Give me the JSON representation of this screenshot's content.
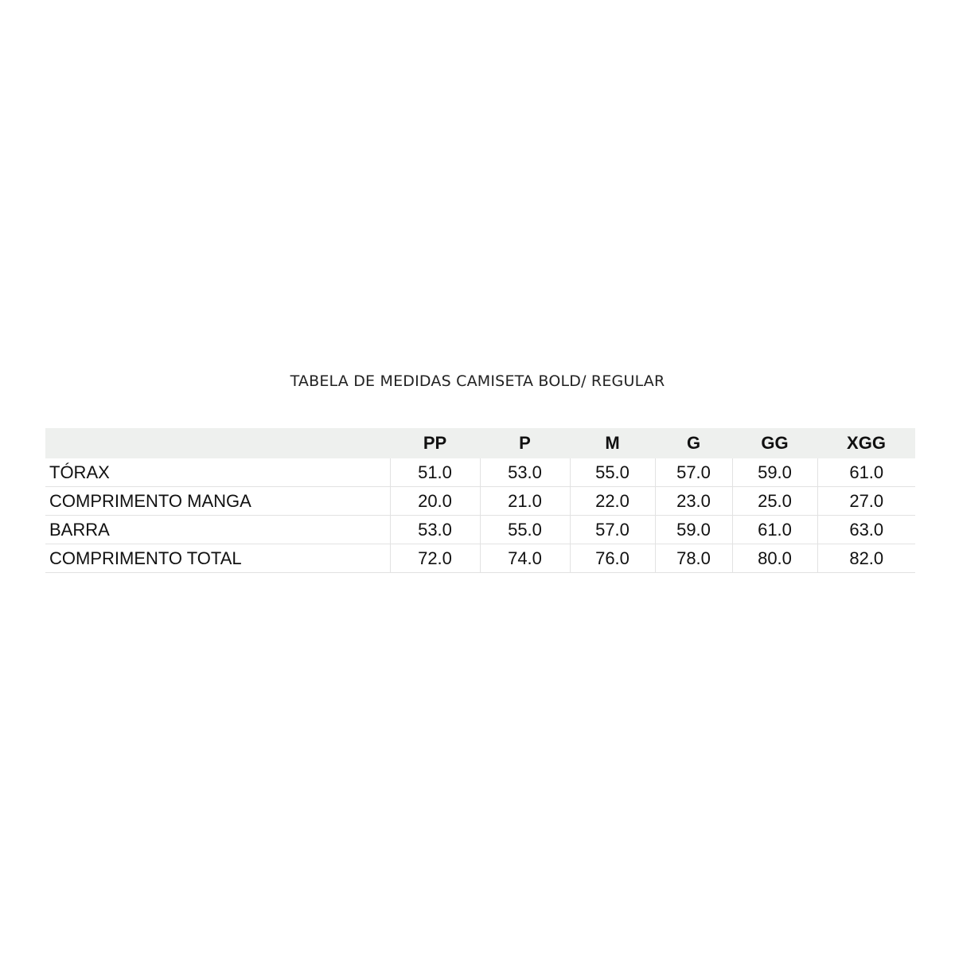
{
  "title": "TABELA DE MEDIDAS CAMISETA BOLD/ REGULAR",
  "table": {
    "header": [
      "PP",
      "P",
      "M",
      "G",
      "GG",
      "XGG"
    ],
    "rows": [
      [
        "TÓRAX",
        "51.0",
        "53.0",
        "55.0",
        "57.0",
        "59.0",
        "61.0"
      ],
      [
        "COMPRIMENTO MANGA",
        "20.0",
        "21.0",
        "22.0",
        "23.0",
        "25.0",
        "27.0"
      ],
      [
        "BARRA",
        "53.0",
        "55.0",
        "57.0",
        "59.0",
        "61.0",
        "63.0"
      ],
      [
        "COMPRIMENTO TOTAL",
        "72.0",
        "74.0",
        "76.0",
        "78.0",
        "80.0",
        "82.0"
      ]
    ]
  }
}
